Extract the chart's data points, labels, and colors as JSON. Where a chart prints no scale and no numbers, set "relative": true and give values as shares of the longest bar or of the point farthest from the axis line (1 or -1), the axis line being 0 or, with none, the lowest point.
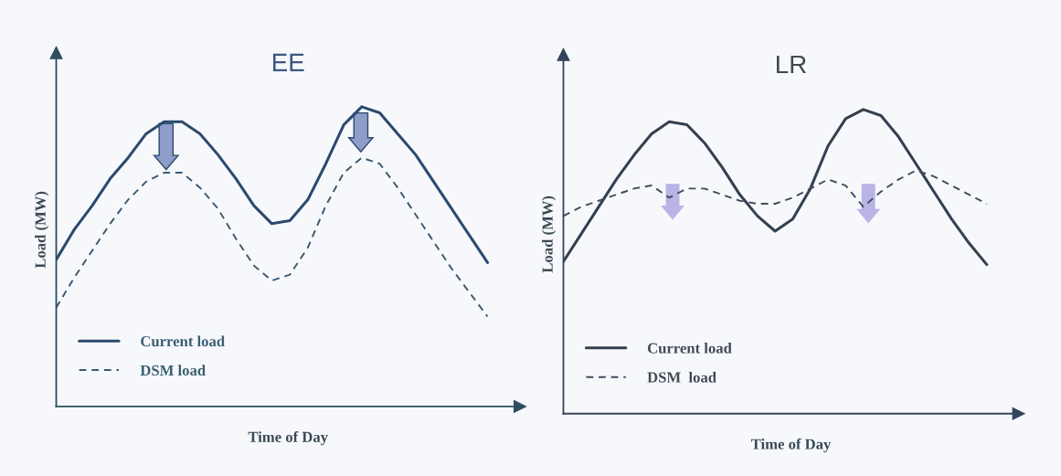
{
  "chart_data": [
    {
      "type": "line",
      "title": "EE",
      "xlabel": "Time of Day",
      "ylabel": "Load (MW)",
      "relative": true,
      "legend": "bottom left",
      "categories": [
        null,
        null,
        null,
        null,
        null,
        null,
        null,
        null,
        null,
        null,
        null,
        null,
        null,
        null,
        null,
        null,
        null,
        null,
        null,
        null,
        null,
        null,
        null,
        null,
        null
      ],
      "series": [
        {
          "name": "Current load",
          "color": "#2c4a6e",
          "line_style": "solid",
          "values": [
            0.49,
            0.59,
            0.67,
            0.76,
            0.83,
            0.91,
            0.95,
            0.95,
            0.91,
            0.84,
            0.76,
            0.67,
            0.61,
            0.62,
            0.69,
            0.81,
            0.94,
            1.0,
            0.98,
            0.91,
            0.84,
            0.75,
            0.66,
            0.57,
            0.48
          ]
        },
        {
          "name": "DSM load",
          "color": "#3a5a72",
          "line_style": "dashed",
          "values": [
            0.33,
            0.43,
            0.52,
            0.61,
            0.69,
            0.75,
            0.78,
            0.78,
            0.73,
            0.66,
            0.56,
            0.47,
            0.42,
            0.44,
            0.53,
            0.67,
            0.78,
            0.83,
            0.81,
            0.73,
            0.64,
            0.55,
            0.46,
            0.38,
            0.3
          ]
        }
      ]
    },
    {
      "type": "line",
      "title": "LR",
      "xlabel": "Time of Day",
      "ylabel": "Load (MW)",
      "relative": true,
      "legend": "bottom left",
      "categories": [
        null,
        null,
        null,
        null,
        null,
        null,
        null,
        null,
        null,
        null,
        null,
        null,
        null,
        null,
        null,
        null,
        null,
        null,
        null,
        null,
        null,
        null,
        null,
        null,
        null
      ],
      "series": [
        {
          "name": "Current load",
          "color": "#34404f",
          "line_style": "solid",
          "values": [
            0.5,
            0.59,
            0.68,
            0.77,
            0.85,
            0.92,
            0.96,
            0.95,
            0.89,
            0.81,
            0.72,
            0.65,
            0.6,
            0.64,
            0.74,
            0.88,
            0.97,
            1.0,
            0.98,
            0.91,
            0.82,
            0.73,
            0.64,
            0.56,
            0.49
          ]
        },
        {
          "name": "DSM  load",
          "color": "#3e4e5e",
          "line_style": "dashed",
          "values": [
            0.65,
            0.68,
            0.7,
            0.72,
            0.74,
            0.75,
            0.71,
            0.74,
            0.74,
            0.72,
            0.7,
            0.69,
            0.69,
            0.71,
            0.74,
            0.77,
            0.75,
            0.68,
            0.73,
            0.77,
            0.8,
            0.78,
            0.75,
            0.72,
            0.69
          ]
        }
      ]
    }
  ]
}
